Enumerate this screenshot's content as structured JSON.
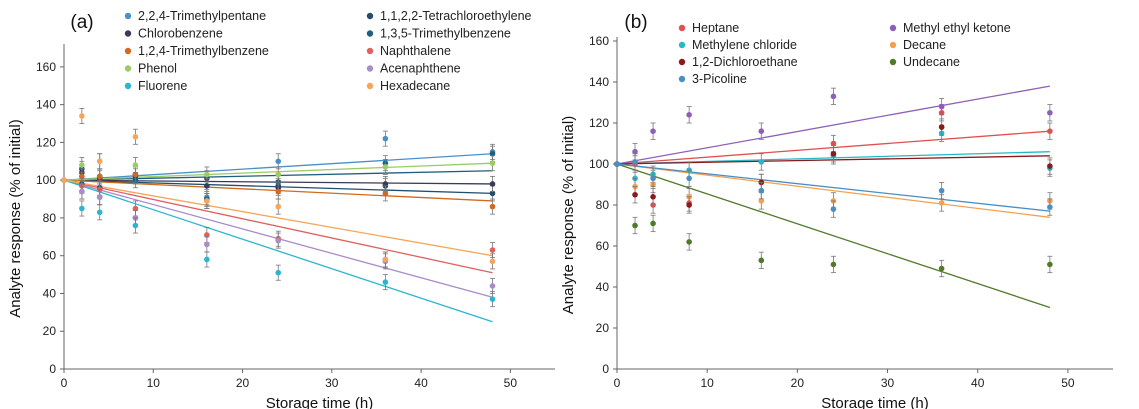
{
  "chart_data": [
    {
      "type": "scatter",
      "panel_label": "(a)",
      "xlabel": "Storage time (h)",
      "ylabel": "Analyte response (% of initial)",
      "xlim": [
        0,
        55
      ],
      "ylim": [
        0,
        170
      ],
      "x_ticks": [
        "0",
        "10",
        "20",
        "30",
        "40",
        "50"
      ],
      "y_ticks": [
        "0",
        "20",
        "40",
        "60",
        "80",
        "100",
        "120",
        "140",
        "160"
      ],
      "x": [
        0,
        2,
        4,
        8,
        16,
        24,
        36,
        48
      ],
      "legend_columns": 2,
      "series": [
        {
          "name": "2,2,4-Trimethylpentane",
          "color": "#4a90c8",
          "values": [
            100,
            94,
            91,
            80,
            91,
            110,
            122,
            115
          ],
          "trend": [
            100,
            114
          ]
        },
        {
          "name": "1,1,2,2-Tetrachloroethylene",
          "color": "#1f4e6f",
          "values": [
            100,
            106,
            102,
            102,
            101,
            97,
            97,
            93
          ],
          "trend": [
            100,
            93
          ]
        },
        {
          "name": "Chlorobenzene",
          "color": "#3a3a5a",
          "values": [
            100,
            104,
            101,
            103,
            97,
            96,
            98,
            98
          ],
          "trend": [
            100,
            98
          ]
        },
        {
          "name": "1,3,5-Trimethylbenzene",
          "color": "#1f5f7f",
          "values": [
            100,
            98,
            96,
            100,
            90,
            99,
            109,
            114
          ],
          "trend": [
            100,
            105
          ]
        },
        {
          "name": "1,2,4-Trimethylbenzene",
          "color": "#d2691e",
          "values": [
            100,
            102,
            102,
            103,
            89,
            94,
            93,
            86
          ],
          "trend": [
            100,
            89
          ]
        },
        {
          "name": "Naphthalene",
          "color": "#e06060",
          "values": [
            100,
            97,
            95,
            85,
            71,
            69,
            58,
            63
          ],
          "trend": [
            100,
            51
          ]
        },
        {
          "name": "Phenol",
          "color": "#9ccc65",
          "values": [
            100,
            108,
            110,
            108,
            103,
            103,
            107,
            109
          ],
          "trend": [
            100,
            109
          ]
        },
        {
          "name": "Acenaphthene",
          "color": "#a98cc8",
          "values": [
            100,
            94,
            91,
            80,
            66,
            68,
            57,
            44
          ],
          "trend": [
            100,
            38
          ]
        },
        {
          "name": "Fluorene",
          "color": "#29b6d1",
          "values": [
            100,
            85,
            83,
            76,
            58,
            51,
            46,
            37
          ],
          "trend": [
            100,
            25
          ]
        },
        {
          "name": "Hexadecane",
          "color": "#f6a65a",
          "values": [
            100,
            134,
            110,
            123,
            89,
            86,
            58,
            57
          ],
          "trend": [
            100,
            60
          ]
        }
      ]
    },
    {
      "type": "scatter",
      "panel_label": "(b)",
      "xlabel": "Storage time (h)",
      "ylabel": "Analyte response (% of initial)",
      "xlim": [
        0,
        55
      ],
      "ylim": [
        0,
        160
      ],
      "x_ticks": [
        "0",
        "10",
        "20",
        "30",
        "40",
        "50"
      ],
      "y_ticks": [
        "0",
        "20",
        "40",
        "60",
        "80",
        "100",
        "120",
        "140",
        "160"
      ],
      "x": [
        0,
        2,
        4,
        8,
        16,
        24,
        36,
        48
      ],
      "legend_columns": 2,
      "series": [
        {
          "name": "Heptane",
          "color": "#e05050",
          "values": [
            100,
            100,
            80,
            81,
            91,
            110,
            125,
            116
          ],
          "trend": [
            100,
            116
          ]
        },
        {
          "name": "Methyl ethyl ketone",
          "color": "#8e5fb8",
          "values": [
            100,
            106,
            116,
            124,
            116,
            133,
            128,
            125
          ],
          "trend": [
            100,
            138
          ]
        },
        {
          "name": "Methylene chloride",
          "color": "#26b8c8",
          "values": [
            100,
            93,
            95,
            97,
            101,
            104,
            115,
            98
          ],
          "trend": [
            100,
            106
          ]
        },
        {
          "name": "Decane",
          "color": "#f5a050",
          "values": [
            100,
            89,
            90,
            84,
            82,
            82,
            81,
            82
          ],
          "trend": [
            100,
            74
          ]
        },
        {
          "name": "1,2-Dichloroethane",
          "color": "#8b1a1a",
          "values": [
            100,
            85,
            84,
            80,
            91,
            105,
            118,
            99
          ],
          "trend": [
            100,
            104
          ]
        },
        {
          "name": "Undecane",
          "color": "#4f7a28",
          "values": [
            100,
            70,
            71,
            62,
            53,
            51,
            49,
            51
          ],
          "trend": [
            100,
            30
          ]
        },
        {
          "name": "3-Picoline",
          "color": "#4a8fc4",
          "values": [
            100,
            101,
            93,
            93,
            87,
            78,
            87,
            79
          ],
          "trend": [
            100,
            77
          ]
        }
      ]
    }
  ]
}
